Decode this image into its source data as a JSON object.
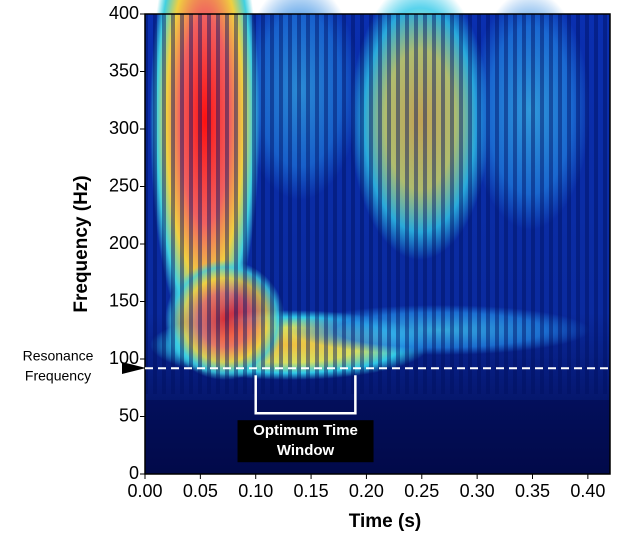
{
  "chart_data": {
    "type": "scalogram",
    "x_label": "Time (s)",
    "y_label": "Frequency (Hz)",
    "xlim": [
      0,
      0.42
    ],
    "ylim": [
      0,
      400
    ],
    "xticks": [
      {
        "value": 0,
        "label": "0.00"
      },
      {
        "value": 0.05,
        "label": "0.05"
      },
      {
        "value": 0.1,
        "label": "0.10"
      },
      {
        "value": 0.15,
        "label": "0.15"
      },
      {
        "value": 0.2,
        "label": "0.20"
      },
      {
        "value": 0.25,
        "label": "0.25"
      },
      {
        "value": 0.3,
        "label": "0.30"
      },
      {
        "value": 0.35,
        "label": "0.35"
      },
      {
        "value": 0.4,
        "label": "0.40"
      }
    ],
    "yticks": [
      0,
      50,
      100,
      150,
      200,
      250,
      300,
      350,
      400
    ],
    "resonance_frequency": 92,
    "resonance_label": [
      "Resonance",
      "Frequency"
    ],
    "optimum_window": [
      0.1,
      0.19
    ],
    "optimum_window_label": [
      "Optimum Time",
      "Window"
    ]
  }
}
